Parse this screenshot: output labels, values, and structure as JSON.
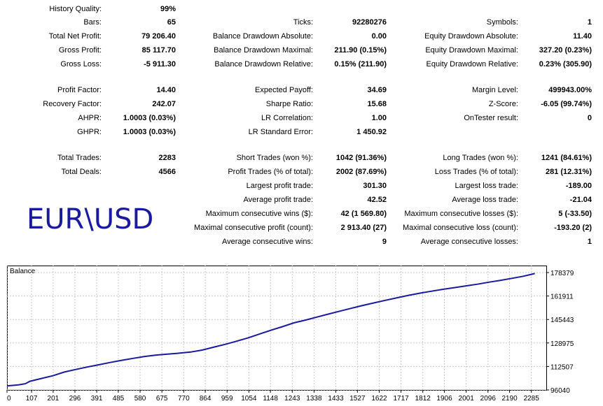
{
  "stats": [
    {
      "label": "History Quality:",
      "value": "99%"
    },
    {
      "label": "Bars:",
      "value": "65"
    },
    {
      "label": "Total Net Profit:",
      "value": "79 206.40"
    },
    {
      "label": "Gross Profit:",
      "value": "85 117.70"
    },
    {
      "label": "Gross Loss:",
      "value": "-5 911.30"
    },
    {
      "label": "Profit Factor:",
      "value": "14.40"
    },
    {
      "label": "Recovery Factor:",
      "value": "242.07"
    },
    {
      "label": "AHPR:",
      "value": "1.0003 (0.03%)"
    },
    {
      "label": "GHPR:",
      "value": "1.0003 (0.03%)"
    },
    {
      "label": "Total Trades:",
      "value": "2283"
    },
    {
      "label": "Total Deals:",
      "value": "4566"
    },
    {
      "label": "Ticks:",
      "value": "92280276"
    },
    {
      "label": "Balance Drawdown Absolute:",
      "value": "0.00"
    },
    {
      "label": "Balance Drawdown Maximal:",
      "value": "211.90 (0.15%)"
    },
    {
      "label": "Balance Drawdown Relative:",
      "value": "0.15% (211.90)"
    },
    {
      "label": "Expected Payoff:",
      "value": "34.69"
    },
    {
      "label": "Sharpe Ratio:",
      "value": "15.68"
    },
    {
      "label": "LR Correlation:",
      "value": "1.00"
    },
    {
      "label": "LR Standard Error:",
      "value": "1 450.92"
    },
    {
      "label": "Short Trades (won %):",
      "value": "1042 (91.36%)"
    },
    {
      "label": "Profit Trades (% of total):",
      "value": "2002 (87.69%)"
    },
    {
      "label": "Largest profit trade:",
      "value": "301.30"
    },
    {
      "label": "Average profit trade:",
      "value": "42.52"
    },
    {
      "label": "Maximum consecutive wins ($):",
      "value": "42 (1 569.80)"
    },
    {
      "label": "Maximal consecutive profit (count):",
      "value": "2 913.40 (27)"
    },
    {
      "label": "Average consecutive wins:",
      "value": "9"
    },
    {
      "label": "Symbols:",
      "value": "1"
    },
    {
      "label": "Equity Drawdown Absolute:",
      "value": "11.40"
    },
    {
      "label": "Equity Drawdown Maximal:",
      "value": "327.20 (0.23%)"
    },
    {
      "label": "Equity Drawdown Relative:",
      "value": "0.23% (305.90)"
    },
    {
      "label": "Margin Level:",
      "value": "499943.00%"
    },
    {
      "label": "Z-Score:",
      "value": "-6.05 (99.74%)"
    },
    {
      "label": "OnTester result:",
      "value": "0"
    },
    {
      "label": "Long Trades (won %):",
      "value": "1241 (84.61%)"
    },
    {
      "label": "Loss Trades (% of total):",
      "value": "281 (12.31%)"
    },
    {
      "label": "Largest loss trade:",
      "value": "-189.00"
    },
    {
      "label": "Average loss trade:",
      "value": "-21.04"
    },
    {
      "label": "Maximum consecutive losses ($):",
      "value": "5 (-33.50)"
    },
    {
      "label": "Maximal consecutive loss (count):",
      "value": "-193.20 (2)"
    },
    {
      "label": "Average consecutive losses:",
      "value": "1"
    }
  ],
  "symbol_logo": "EUR\\USD",
  "chart_data": {
    "type": "line",
    "title": "Balance",
    "x_ticks": [
      "0",
      "107",
      "201",
      "296",
      "391",
      "485",
      "580",
      "675",
      "770",
      "864",
      "959",
      "1054",
      "1148",
      "1243",
      "1338",
      "1433",
      "1527",
      "1622",
      "1717",
      "1812",
      "1906",
      "2001",
      "2096",
      "2190",
      "2285"
    ],
    "y_ticks": [
      "178379",
      "161911",
      "145443",
      "128975",
      "112507",
      "96040"
    ],
    "xlim": [
      0,
      2350
    ],
    "ylim": [
      96040,
      178379
    ],
    "grid": true,
    "line_color": "#1a1a9e",
    "series": [
      {
        "x": [
          0,
          50,
          80,
          100,
          150,
          200,
          250,
          300,
          350,
          400,
          450,
          500,
          550,
          600,
          650,
          700,
          750,
          800,
          850,
          900,
          950,
          1000,
          1050,
          1100,
          1150,
          1200,
          1250,
          1300,
          1350,
          1400,
          1450,
          1500,
          1550,
          1600,
          1650,
          1700,
          1750,
          1800,
          1850,
          1900,
          1950,
          2000,
          2050,
          2100,
          2150,
          2200,
          2250,
          2300
        ],
        "y": [
          98900,
          99600,
          100400,
          102100,
          104100,
          106000,
          108600,
          110400,
          112100,
          113700,
          115300,
          116800,
          118200,
          119500,
          120500,
          121200,
          121800,
          122600,
          124000,
          126000,
          128000,
          130200,
          132500,
          135200,
          137900,
          140400,
          143100,
          145000,
          147100,
          149200,
          151300,
          153300,
          155300,
          157100,
          158900,
          160700,
          162400,
          163900,
          165300,
          166600,
          167800,
          169000,
          170200,
          171600,
          172900,
          174300,
          175800,
          177700
        ]
      }
    ]
  }
}
